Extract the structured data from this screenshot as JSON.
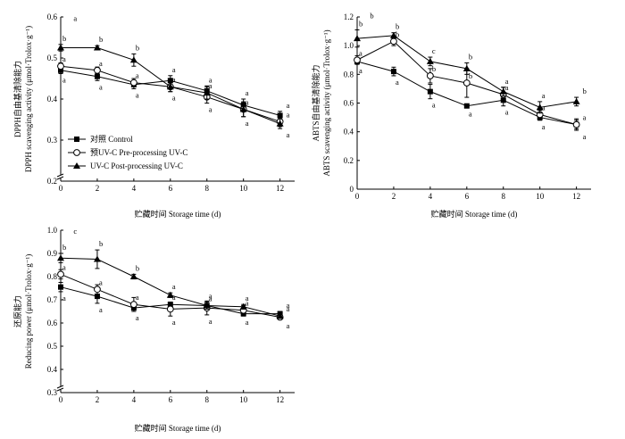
{
  "legend": {
    "entries": [
      "对照 Control",
      "预UV-C Pre-processing UV-C",
      "UV-C  Post-processing UV-C"
    ]
  },
  "colors": {
    "ink": "#000000",
    "background": "#ffffff"
  },
  "chart_data": [
    {
      "type": "line",
      "id": "dpph",
      "xlabel": "贮藏时间 Storage time (d)",
      "ylabel": "DPPH自由基清除能力 DPPH scavenging activity (μmol·Trolox·g⁻¹)",
      "x": [
        0,
        2,
        4,
        6,
        8,
        10,
        12
      ],
      "xticks": [
        "0",
        "2",
        "4",
        "6",
        "8",
        "10",
        "12"
      ],
      "xlim": [
        0,
        12.8
      ],
      "ylim": [
        0.2,
        0.6
      ],
      "yticks": [
        0.2,
        0.3,
        0.4,
        0.5,
        0.6
      ],
      "ytick_labels": [
        "0.2",
        "0.3",
        "0.4",
        "0.5",
        "0.6"
      ],
      "axis_break": true,
      "grid": false,
      "legend_position": "lower-left",
      "series": [
        {
          "name": "对照 Control",
          "marker": "square",
          "values": [
            0.47,
            0.455,
            0.435,
            0.445,
            0.42,
            0.385,
            0.36
          ],
          "errors": [
            0.008,
            0.01,
            0.01,
            0.012,
            0.012,
            0.015,
            0.01
          ],
          "letters": [
            "a",
            "a",
            "a",
            "a",
            "a",
            "a",
            "a"
          ]
        },
        {
          "name": "预UV-C Pre-processing UV-C",
          "marker": "circle",
          "values": [
            0.48,
            0.47,
            0.44,
            0.43,
            0.405,
            0.375,
            0.345
          ],
          "errors": [
            0.008,
            0.008,
            0.01,
            0.012,
            0.015,
            0.018,
            0.012
          ],
          "letters": [
            "a",
            "a",
            "a",
            "a",
            "a",
            "a",
            "a"
          ]
        },
        {
          "name": "UV-C  Post-processing UV-C",
          "marker": "triangle",
          "values": [
            0.525,
            0.525,
            0.495,
            0.43,
            0.415,
            0.375,
            0.34
          ],
          "errors": [
            0.008,
            0.005,
            0.015,
            0.012,
            0.015,
            0.018,
            0.012
          ],
          "letters": [
            "b",
            "b",
            "b",
            "a",
            "a",
            "a",
            "a"
          ]
        }
      ],
      "annotations": [
        {
          "text": "a",
          "x": 0.7,
          "y": 0.59
        }
      ]
    },
    {
      "type": "line",
      "id": "abts",
      "xlabel": "贮藏时间 Storage time (d)",
      "ylabel": "ABTS自由基清除能力 ABTS scavenging activity (μmol·Trolox·g⁻¹)",
      "x": [
        0,
        2,
        4,
        6,
        8,
        10,
        12
      ],
      "xticks": [
        "0",
        "2",
        "4",
        "6",
        "8",
        "10",
        "12"
      ],
      "xlim": [
        0,
        12.8
      ],
      "ylim": [
        0,
        1.2
      ],
      "yticks": [
        0,
        0.2,
        0.4,
        0.6,
        0.8,
        1.0,
        1.2
      ],
      "ytick_labels": [
        "0",
        "0.2",
        "0.4",
        "0.6",
        "0.8",
        "1.0",
        "1.2"
      ],
      "axis_break": false,
      "grid": false,
      "series": [
        {
          "name": "对照 Control",
          "marker": "square",
          "values": [
            0.89,
            0.82,
            0.68,
            0.58,
            0.62,
            0.5,
            0.45
          ],
          "errors": [
            0.02,
            0.03,
            0.05,
            0.01,
            0.04,
            0.02,
            0.03
          ],
          "letters": [
            "a",
            "a",
            "a",
            "a",
            "a",
            "a",
            "a"
          ]
        },
        {
          "name": "预UV-C Pre-processing UV-C",
          "marker": "circle",
          "values": [
            0.9,
            1.03,
            0.79,
            0.74,
            0.66,
            0.52,
            0.45
          ],
          "errors": [
            0.03,
            0.03,
            0.05,
            0.1,
            0.05,
            0.03,
            0.04
          ],
          "letters": [
            "a",
            "b",
            "b",
            "b",
            "a",
            "a",
            "a"
          ]
        },
        {
          "name": "UV-C  Post-processing UV-C",
          "marker": "triangle",
          "values": [
            1.05,
            1.07,
            0.89,
            0.84,
            0.68,
            0.57,
            0.61
          ],
          "errors": [
            0.06,
            0.02,
            0.03,
            0.04,
            0.03,
            0.04,
            0.03
          ],
          "letters": [
            "b",
            "b",
            "c",
            "b",
            "a",
            "a",
            "b"
          ]
        }
      ],
      "annotations": [
        {
          "text": "b",
          "x": 0.7,
          "y": 1.19
        }
      ]
    },
    {
      "type": "line",
      "id": "reducing",
      "xlabel": "贮藏时间 Storage time (d)",
      "ylabel": "还原能力 Reducing power (μmol·Trolox·g⁻¹)",
      "x": [
        0,
        2,
        4,
        6,
        8,
        10,
        12
      ],
      "xticks": [
        "0",
        "2",
        "4",
        "6",
        "8",
        "10",
        "12"
      ],
      "xlim": [
        0,
        12.8
      ],
      "ylim": [
        0.3,
        1.0
      ],
      "yticks": [
        0.3,
        0.4,
        0.5,
        0.6,
        0.7,
        0.8,
        0.9,
        1.0
      ],
      "ytick_labels": [
        "0.3",
        "0.4",
        "0.5",
        "0.6",
        "0.7",
        "0.8",
        "0.9",
        "1.0"
      ],
      "axis_break": true,
      "grid": false,
      "series": [
        {
          "name": "对照 Control",
          "marker": "square",
          "values": [
            0.755,
            0.715,
            0.665,
            0.68,
            0.675,
            0.64,
            0.64
          ],
          "errors": [
            0.02,
            0.03,
            0.015,
            0.01,
            0.015,
            0.01,
            0.01
          ],
          "letters": [
            "a",
            "a",
            "a",
            "a",
            "a",
            "a",
            "a"
          ]
        },
        {
          "name": "预UV-C Pre-processing UV-C",
          "marker": "circle",
          "values": [
            0.81,
            0.745,
            0.68,
            0.66,
            0.665,
            0.655,
            0.625
          ],
          "errors": [
            0.02,
            0.02,
            0.03,
            0.03,
            0.03,
            0.02,
            0.01
          ],
          "letters": [
            "a",
            "a",
            "a",
            "a",
            "a",
            "a",
            "a"
          ]
        },
        {
          "name": "UV-C  Post-processing UV-C",
          "marker": "triangle",
          "values": [
            0.88,
            0.875,
            0.8,
            0.72,
            0.675,
            0.67,
            0.63
          ],
          "errors": [
            0.02,
            0.04,
            0.01,
            0.01,
            0.015,
            0.01,
            0.01
          ],
          "letters": [
            "b",
            "b",
            "b",
            "a",
            "a",
            "a",
            "a"
          ]
        }
      ],
      "annotations": [
        {
          "text": "c",
          "x": 0.7,
          "y": 0.985
        }
      ]
    }
  ]
}
